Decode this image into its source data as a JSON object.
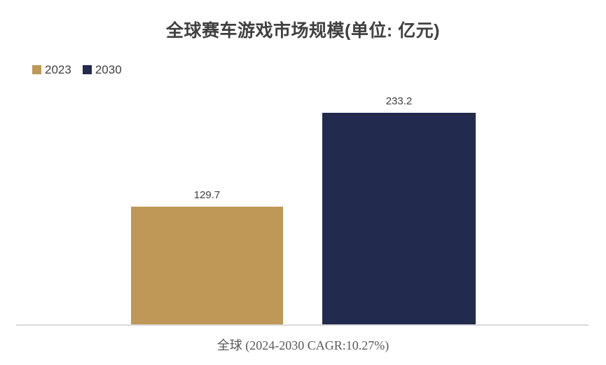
{
  "title": "全球赛车游戏市场规模(单位: 亿元)",
  "legend": {
    "items": [
      {
        "label": "2023",
        "color": "#bf9757"
      },
      {
        "label": "2030",
        "color": "#222a4e"
      }
    ]
  },
  "axis": {
    "category_label": "全球 (2024-2030 CAGR:10.27%)"
  },
  "colors": {
    "bar_2023": "#bf9757",
    "bar_2030": "#222a4e",
    "title_text": "#404040",
    "caption_text": "#595959",
    "axis_line": "#d9d9d9"
  },
  "chart_data": {
    "type": "bar",
    "title": "全球赛车游戏市场规模(单位: 亿元)",
    "categories": [
      "全球 (2024-2030 CAGR:10.27%)"
    ],
    "series": [
      {
        "name": "2023",
        "values": [
          129.7
        ],
        "color": "#bf9757"
      },
      {
        "name": "2030",
        "values": [
          233.2
        ],
        "color": "#222a4e"
      }
    ],
    "xlabel": "",
    "ylabel": "",
    "ylim": [
      0,
      250
    ],
    "grid": false,
    "legend_position": "top-left",
    "data_labels_shown": true
  }
}
